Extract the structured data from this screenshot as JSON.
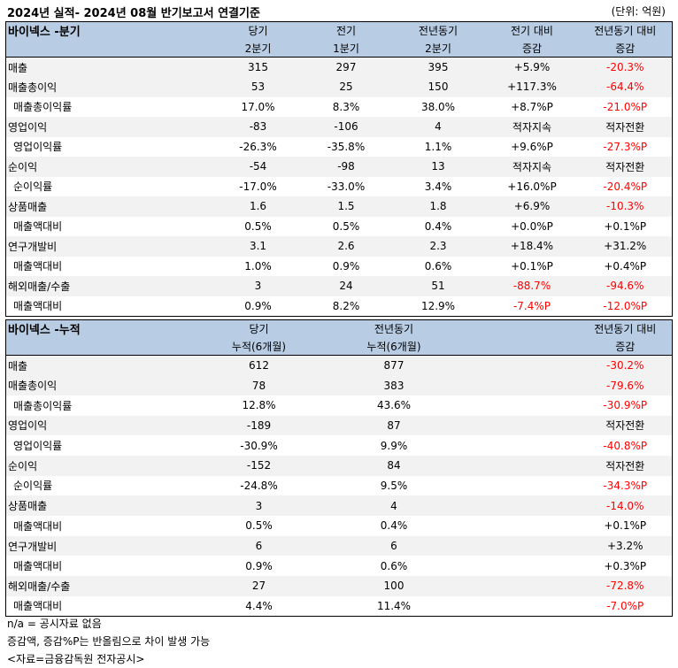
{
  "title": "2024년 실적- 2024년 08월 반기보고서 연결기준",
  "unit": "(단위: 억원)",
  "quarterly": {
    "section_label": "바이넥스 -분기",
    "headers": [
      [
        "당기",
        "2분기"
      ],
      [
        "전기",
        "1분기"
      ],
      [
        "전년동기",
        "2분기"
      ],
      [
        "전기 대비",
        "증감"
      ],
      [
        "전년동기 대비",
        "증감"
      ]
    ],
    "groups": [
      {
        "rows": [
          {
            "label": "매출",
            "values": [
              "315",
              "297",
              "395",
              "+5.9%",
              "-20.3%"
            ],
            "red": [
              false,
              false,
              false,
              false,
              true
            ]
          }
        ]
      },
      {
        "rows": [
          {
            "label": "매출총이익",
            "values": [
              "53",
              "25",
              "150",
              "+117.3%",
              "-64.4%"
            ],
            "red": [
              false,
              false,
              false,
              false,
              true
            ]
          },
          {
            "label": "매출총이익률",
            "values": [
              "17.0%",
              "8.3%",
              "38.0%",
              "+8.7%P",
              "-21.0%P"
            ],
            "red": [
              false,
              false,
              false,
              false,
              true
            ]
          }
        ]
      },
      {
        "rows": [
          {
            "label": "영업이익",
            "values": [
              "-83",
              "-106",
              "4",
              "적자지속",
              "적자전환"
            ],
            "red": [
              false,
              false,
              false,
              false,
              false
            ]
          },
          {
            "label": "영업이익률",
            "values": [
              "-26.3%",
              "-35.8%",
              "1.1%",
              "+9.6%P",
              "-27.3%P"
            ],
            "red": [
              false,
              false,
              false,
              false,
              true
            ]
          }
        ]
      },
      {
        "rows": [
          {
            "label": "순이익",
            "values": [
              "-54",
              "-98",
              "13",
              "적자지속",
              "적자전환"
            ],
            "red": [
              false,
              false,
              false,
              false,
              false
            ]
          },
          {
            "label": "순이익률",
            "values": [
              "-17.0%",
              "-33.0%",
              "3.4%",
              "+16.0%P",
              "-20.4%P"
            ],
            "red": [
              false,
              false,
              false,
              false,
              true
            ]
          }
        ]
      },
      {
        "rows": [
          {
            "label": "상품매출",
            "values": [
              "1.6",
              "1.5",
              "1.8",
              "+6.9%",
              "-10.3%"
            ],
            "red": [
              false,
              false,
              false,
              false,
              true
            ]
          },
          {
            "label": "매출액대비",
            "values": [
              "0.5%",
              "0.5%",
              "0.4%",
              "+0.0%P",
              "+0.1%P"
            ],
            "red": [
              false,
              false,
              false,
              false,
              false
            ]
          }
        ]
      },
      {
        "rows": [
          {
            "label": "연구개발비",
            "values": [
              "3.1",
              "2.6",
              "2.3",
              "+18.4%",
              "+31.2%"
            ],
            "red": [
              false,
              false,
              false,
              false,
              false
            ]
          },
          {
            "label": "매출액대비",
            "values": [
              "1.0%",
              "0.9%",
              "0.6%",
              "+0.1%P",
              "+0.4%P"
            ],
            "red": [
              false,
              false,
              false,
              false,
              false
            ]
          }
        ]
      },
      {
        "rows": [
          {
            "label": "해외매출/수출",
            "values": [
              "3",
              "24",
              "51",
              "-88.7%",
              "-94.6%"
            ],
            "red": [
              false,
              false,
              false,
              true,
              true
            ]
          },
          {
            "label": "매출액대비",
            "values": [
              "0.9%",
              "8.2%",
              "12.9%",
              "-7.4%P",
              "-12.0%P"
            ],
            "red": [
              false,
              false,
              false,
              true,
              true
            ]
          }
        ]
      }
    ]
  },
  "cumulative": {
    "section_label": "바이넥스 -누적",
    "headers": [
      [
        "당기",
        "누적(6개월)"
      ],
      [
        "전년동기",
        "누적(6개월)"
      ],
      [
        "전년동기 대비",
        "증감"
      ]
    ],
    "groups": [
      {
        "rows": [
          {
            "label": "매출",
            "values": [
              "612",
              "877",
              "-30.2%"
            ],
            "red": [
              false,
              false,
              true
            ]
          }
        ]
      },
      {
        "rows": [
          {
            "label": "매출총이익",
            "values": [
              "78",
              "383",
              "-79.6%"
            ],
            "red": [
              false,
              false,
              true
            ]
          },
          {
            "label": "매출총이익률",
            "values": [
              "12.8%",
              "43.6%",
              "-30.9%P"
            ],
            "red": [
              false,
              false,
              true
            ]
          }
        ]
      },
      {
        "rows": [
          {
            "label": "영업이익",
            "values": [
              "-189",
              "87",
              "적자전환"
            ],
            "red": [
              false,
              false,
              false
            ]
          },
          {
            "label": "영업이익률",
            "values": [
              "-30.9%",
              "9.9%",
              "-40.8%P"
            ],
            "red": [
              false,
              false,
              true
            ]
          }
        ]
      },
      {
        "rows": [
          {
            "label": "순이익",
            "values": [
              "-152",
              "84",
              "적자전환"
            ],
            "red": [
              false,
              false,
              false
            ]
          },
          {
            "label": "순이익률",
            "values": [
              "-24.8%",
              "9.5%",
              "-34.3%P"
            ],
            "red": [
              false,
              false,
              true
            ]
          }
        ]
      },
      {
        "rows": [
          {
            "label": "상품매출",
            "values": [
              "3",
              "4",
              "-14.0%"
            ],
            "red": [
              false,
              false,
              true
            ]
          },
          {
            "label": "매출액대비",
            "values": [
              "0.5%",
              "0.4%",
              "+0.1%P"
            ],
            "red": [
              false,
              false,
              false
            ]
          }
        ]
      },
      {
        "rows": [
          {
            "label": "연구개발비",
            "values": [
              "6",
              "6",
              "+3.2%"
            ],
            "red": [
              false,
              false,
              false
            ]
          },
          {
            "label": "매출액대비",
            "values": [
              "0.9%",
              "0.6%",
              "+0.3%P"
            ],
            "red": [
              false,
              false,
              false
            ]
          }
        ]
      },
      {
        "rows": [
          {
            "label": "해외매출/수출",
            "values": [
              "27",
              "100",
              "-72.8%"
            ],
            "red": [
              false,
              false,
              true
            ]
          },
          {
            "label": "매출액대비",
            "values": [
              "4.4%",
              "11.4%",
              "-7.0%P"
            ],
            "red": [
              false,
              false,
              true
            ]
          }
        ]
      }
    ]
  },
  "notes": [
    "n/a = 공시자료 없음",
    "증감액, 증감%P는 반올림으로 차이 발생 가능",
    "<자료=금융감독원 전자공시>"
  ]
}
